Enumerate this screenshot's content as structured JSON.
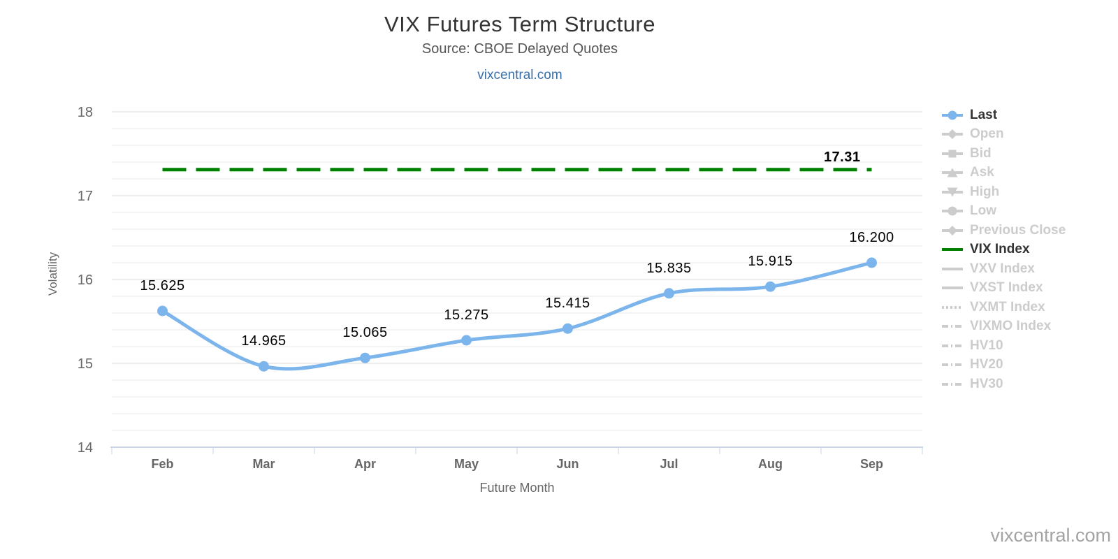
{
  "chart_data": {
    "type": "line",
    "title": "VIX Futures Term Structure",
    "subtitle": "Source: CBOE Delayed Quotes",
    "source_link": "vixcentral.com",
    "categories": [
      "Feb",
      "Mar",
      "Apr",
      "May",
      "Jun",
      "Jul",
      "Aug",
      "Sep"
    ],
    "series": [
      {
        "name": "Last",
        "type": "spline",
        "color": "#7cb5ec",
        "values": [
          15.625,
          14.965,
          15.065,
          15.275,
          15.415,
          15.835,
          15.915,
          16.2
        ],
        "point_labels": [
          "15.625",
          "14.965",
          "15.065",
          "15.275",
          "15.415",
          "15.835",
          "15.915",
          "16.200"
        ]
      },
      {
        "name": "VIX Index",
        "type": "hline",
        "color": "#008000",
        "dash": "dash",
        "value": 17.31,
        "label": "17.31"
      }
    ],
    "xlabel": "Future Month",
    "ylabel": "Volatility",
    "ylim": [
      14,
      18
    ],
    "yticks": [
      14,
      15,
      16,
      17,
      18
    ],
    "minor_tick_step": 0.2,
    "grid": true,
    "legend_position": "right"
  },
  "legend": {
    "items": [
      {
        "label": "Last",
        "symbol": "circle",
        "dash": "solid",
        "color": "#7cb5ec",
        "text_color": "#333333",
        "active": true
      },
      {
        "label": "Open",
        "symbol": "diamond",
        "dash": "solid",
        "color": "#cccccc",
        "text_color": "#cccccc",
        "active": false
      },
      {
        "label": "Bid",
        "symbol": "square",
        "dash": "solid",
        "color": "#cccccc",
        "text_color": "#cccccc",
        "active": false
      },
      {
        "label": "Ask",
        "symbol": "triangle-up",
        "dash": "solid",
        "color": "#cccccc",
        "text_color": "#cccccc",
        "active": false
      },
      {
        "label": "High",
        "symbol": "triangle-down",
        "dash": "solid",
        "color": "#cccccc",
        "text_color": "#cccccc",
        "active": false
      },
      {
        "label": "Low",
        "symbol": "circle",
        "dash": "solid",
        "color": "#cccccc",
        "text_color": "#cccccc",
        "active": false
      },
      {
        "label": "Previous Close",
        "symbol": "diamond",
        "dash": "solid",
        "color": "#cccccc",
        "text_color": "#cccccc",
        "active": false
      },
      {
        "label": "VIX Index",
        "symbol": "none",
        "dash": "solid",
        "color": "#008000",
        "text_color": "#333333",
        "active": true
      },
      {
        "label": "VXV Index",
        "symbol": "none",
        "dash": "solid",
        "color": "#cccccc",
        "text_color": "#cccccc",
        "active": false
      },
      {
        "label": "VXST Index",
        "symbol": "none",
        "dash": "solid",
        "color": "#cccccc",
        "text_color": "#cccccc",
        "active": false
      },
      {
        "label": "VXMT Index",
        "symbol": "none",
        "dash": "dot",
        "color": "#cccccc",
        "text_color": "#cccccc",
        "active": false
      },
      {
        "label": "VIXMO Index",
        "symbol": "none",
        "dash": "dashdot",
        "color": "#cccccc",
        "text_color": "#cccccc",
        "active": false
      },
      {
        "label": "HV10",
        "symbol": "none",
        "dash": "dashdot",
        "color": "#cccccc",
        "text_color": "#cccccc",
        "active": false
      },
      {
        "label": "HV20",
        "symbol": "none",
        "dash": "dashdot",
        "color": "#cccccc",
        "text_color": "#cccccc",
        "active": false
      },
      {
        "label": "HV30",
        "symbol": "none",
        "dash": "dashdot",
        "color": "#cccccc",
        "text_color": "#cccccc",
        "active": false
      }
    ]
  },
  "watermark": {
    "text": "vixcentral.com"
  },
  "colors": {
    "accent_blue": "#7cb5ec",
    "vix_green": "#008000",
    "disabled_gray": "#cccccc",
    "active_text": "#333333",
    "grid_major": "#d8d8d8",
    "grid_minor": "#e9e9e9",
    "axis_line": "#c9d4e6",
    "label_text": "#666666",
    "link_blue": "#3a6ea8",
    "data_label": "#000000",
    "watermark_gray": "#a3a3a3"
  }
}
